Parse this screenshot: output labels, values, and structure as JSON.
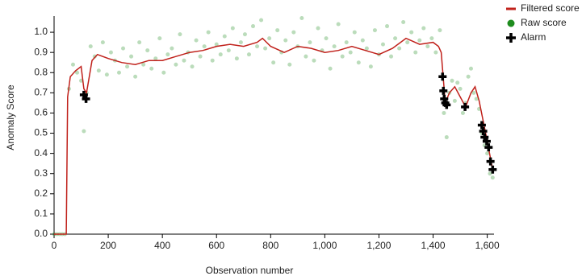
{
  "chart_data": {
    "type": "line",
    "xlabel": "Observation number",
    "ylabel": "Anomaly Score",
    "xlim": [
      0,
      1625
    ],
    "ylim": [
      0,
      1.08
    ],
    "xticks": [
      0,
      200,
      400,
      600,
      800,
      {
        "value": 1000,
        "label": "1,000"
      },
      {
        "value": 1200,
        "label": "1,200"
      },
      {
        "value": 1400,
        "label": "1,400"
      },
      {
        "value": 1600,
        "label": "1,600"
      }
    ],
    "yticks": [
      {
        "value": 0,
        "label": "0.0"
      },
      {
        "value": 0.1,
        "label": "0.1"
      },
      {
        "value": 0.2,
        "label": "0.2"
      },
      {
        "value": 0.3,
        "label": "0.3"
      },
      {
        "value": 0.4,
        "label": "0.4"
      },
      {
        "value": 0.5,
        "label": "0.5"
      },
      {
        "value": 0.6,
        "label": "0.6"
      },
      {
        "value": 0.7,
        "label": "0.7"
      },
      {
        "value": 0.8,
        "label": "0.8"
      },
      {
        "value": 0.9,
        "label": "0.9"
      },
      {
        "value": 1,
        "label": "1.0"
      }
    ],
    "legend": "top-right",
    "series": [
      {
        "name": "Filtered score",
        "mark": "line",
        "color": "#c0211b",
        "x": [
          0,
          45,
          50,
          60,
          80,
          100,
          110,
          120,
          140,
          160,
          200,
          250,
          300,
          350,
          400,
          450,
          500,
          550,
          600,
          650,
          700,
          750,
          770,
          800,
          850,
          900,
          950,
          1000,
          1050,
          1100,
          1150,
          1200,
          1250,
          1300,
          1350,
          1400,
          1420,
          1430,
          1445,
          1460,
          1480,
          1500,
          1520,
          1540,
          1555,
          1570,
          1585,
          1600,
          1620
        ],
        "values": [
          0,
          0,
          0.68,
          0.78,
          0.81,
          0.83,
          0.72,
          0.7,
          0.86,
          0.89,
          0.87,
          0.85,
          0.84,
          0.86,
          0.86,
          0.88,
          0.9,
          0.91,
          0.93,
          0.94,
          0.93,
          0.95,
          0.97,
          0.93,
          0.9,
          0.93,
          0.92,
          0.9,
          0.91,
          0.93,
          0.91,
          0.89,
          0.92,
          0.97,
          0.94,
          0.95,
          0.93,
          0.9,
          0.65,
          0.7,
          0.73,
          0.68,
          0.63,
          0.7,
          0.73,
          0.66,
          0.56,
          0.46,
          0.32
        ]
      },
      {
        "name": "Raw score",
        "mark": "dot",
        "color": "#1e8c1e",
        "x": [
          0,
          10,
          20,
          30,
          40,
          55,
          70,
          85,
          100,
          110,
          120,
          135,
          150,
          165,
          180,
          195,
          210,
          225,
          240,
          255,
          270,
          285,
          300,
          315,
          330,
          345,
          360,
          375,
          390,
          405,
          420,
          435,
          450,
          465,
          480,
          495,
          510,
          525,
          540,
          555,
          570,
          585,
          600,
          615,
          630,
          645,
          660,
          675,
          690,
          705,
          720,
          735,
          750,
          765,
          780,
          795,
          810,
          825,
          840,
          855,
          870,
          885,
          900,
          915,
          930,
          945,
          960,
          975,
          990,
          1005,
          1020,
          1035,
          1050,
          1065,
          1080,
          1095,
          1110,
          1125,
          1140,
          1155,
          1170,
          1185,
          1200,
          1215,
          1230,
          1245,
          1260,
          1275,
          1290,
          1305,
          1320,
          1335,
          1350,
          1365,
          1380,
          1395,
          1410,
          1425,
          1440,
          1450,
          1460,
          1470,
          1480,
          1490,
          1500,
          1510,
          1520,
          1530,
          1540,
          1550,
          1560,
          1570,
          1580,
          1590,
          1600,
          1610,
          1620
        ],
        "values": [
          0,
          0,
          0,
          0,
          0,
          0.72,
          0.84,
          0.8,
          0.76,
          0.51,
          0.7,
          0.93,
          0.88,
          0.81,
          0.95,
          0.79,
          0.9,
          0.86,
          0.8,
          0.92,
          0.83,
          0.88,
          0.78,
          0.95,
          0.84,
          0.91,
          0.82,
          0.87,
          0.97,
          0.8,
          0.89,
          0.92,
          0.84,
          0.99,
          0.86,
          0.9,
          0.83,
          0.96,
          0.88,
          0.93,
          1.0,
          0.86,
          0.94,
          0.89,
          0.98,
          0.91,
          1.02,
          0.87,
          0.95,
          0.99,
          0.89,
          1.03,
          0.93,
          1.06,
          0.92,
          0.97,
          0.85,
          1.01,
          0.9,
          0.96,
          0.84,
          1.0,
          0.93,
          1.07,
          0.88,
          0.95,
          0.86,
          1.02,
          0.91,
          0.97,
          0.82,
          0.93,
          1.04,
          0.88,
          0.95,
          0.9,
          1.0,
          0.85,
          0.96,
          0.92,
          0.83,
          1.01,
          0.89,
          0.94,
          1.03,
          0.88,
          0.97,
          0.92,
          1.05,
          0.95,
          1.0,
          0.9,
          0.96,
          1.02,
          0.93,
          0.97,
          0.9,
          1.01,
          0.6,
          0.48,
          0.7,
          0.76,
          0.66,
          0.75,
          0.72,
          0.6,
          0.65,
          0.78,
          0.82,
          0.7,
          0.67,
          0.62,
          0.5,
          0.44,
          0.4,
          0.3,
          0.28
        ]
      },
      {
        "name": "Alarm",
        "mark": "cross",
        "color": "#000000",
        "x": [
          110,
          118,
          1435,
          1438,
          1441,
          1445,
          1450,
          1518,
          1580,
          1585,
          1590,
          1598,
          1605,
          1612,
          1620
        ],
        "values": [
          0.69,
          0.67,
          0.78,
          0.71,
          0.67,
          0.65,
          0.64,
          0.63,
          0.54,
          0.51,
          0.48,
          0.46,
          0.43,
          0.36,
          0.32
        ]
      }
    ]
  }
}
